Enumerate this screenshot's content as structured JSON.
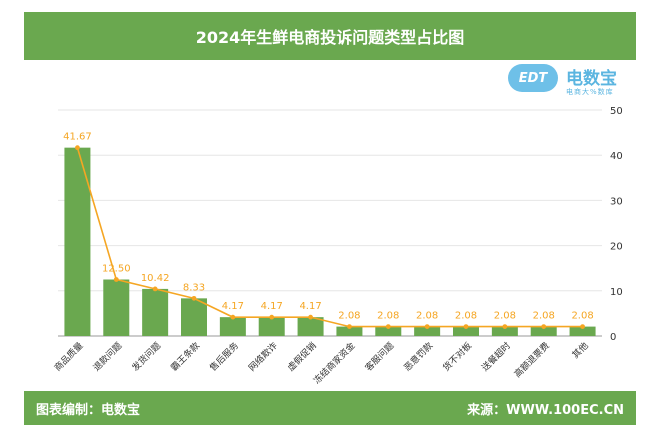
{
  "header": {
    "title": "2024年生鲜电商投诉问题类型占比图"
  },
  "logo": {
    "name": "电数宝",
    "mark": "EDT",
    "tagline": "电商大%数库"
  },
  "footer": {
    "left": "图表编制：电数宝",
    "right": "来源：WWW.100EC.CN"
  },
  "colors": {
    "bar": "#6aa84f",
    "line": "#f5a623",
    "label": "#f5a623",
    "header": "#6aa84f"
  },
  "chart_data": {
    "type": "bar",
    "title": "2024年生鲜电商投诉问题类型占比图",
    "categories": [
      "商品质量",
      "退款问题",
      "发货问题",
      "霸王条款",
      "售后服务",
      "网络欺诈",
      "虚假促销",
      "冻结商家资金",
      "客服问题",
      "恶意罚款",
      "货不对板",
      "送餐超时",
      "高额退票费",
      "其他"
    ],
    "values": [
      41.67,
      12.5,
      10.42,
      8.33,
      4.17,
      4.17,
      4.17,
      2.08,
      2.08,
      2.08,
      2.08,
      2.08,
      2.08,
      2.08
    ],
    "value_labels": [
      "41.67",
      "12.50",
      "10.42",
      "8.33",
      "4.17",
      "4.17",
      "4.17",
      "2.08",
      "2.08",
      "2.08",
      "2.08",
      "2.08",
      "2.08",
      "2.08"
    ],
    "overlay_line": true,
    "ylim": [
      0,
      50
    ],
    "yticks": [
      0,
      10,
      20,
      30,
      40,
      50
    ],
    "y_axis_side": "right",
    "grid": true
  }
}
